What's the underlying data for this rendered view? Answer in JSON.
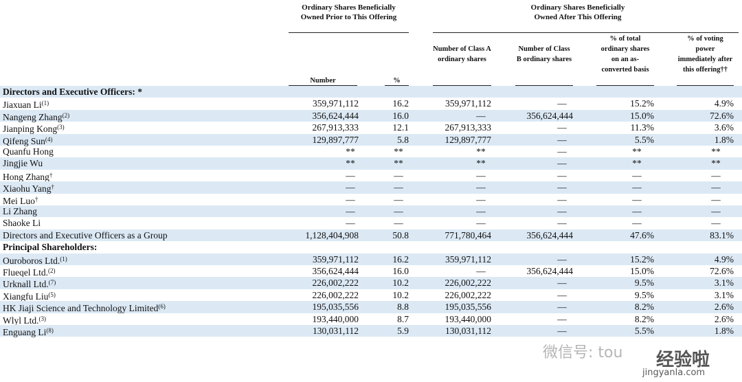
{
  "table": {
    "group_headers": [
      "Ordinary Shares Beneficially Owned Prior to This Offering",
      "Ordinary Shares Beneficially Owned After This Offering"
    ],
    "columns": [
      "Number",
      "%",
      "Number of Class A ordinary shares",
      "Number of Class B ordinary shares",
      "% of total ordinary shares on an as-converted basis",
      "% of voting power immediately after this offering††"
    ],
    "rows": [
      {
        "label": "Directors and Executive Officers: *"
      },
      {
        "label": "Jiaxuan Li",
        "note": "(1)",
        "cells": [
          "359,971,112",
          "16.2",
          "359,971,112",
          "—",
          "15.2%",
          "4.9%"
        ]
      },
      {
        "label": "Nangeng Zhang",
        "note": "(2)",
        "cells": [
          "356,624,444",
          "16.0",
          "—",
          "356,624,444",
          "15.0%",
          "72.6%"
        ]
      },
      {
        "label": "Jianping Kong",
        "note": "(3)",
        "cells": [
          "267,913,333",
          "12.1",
          "267,913,333",
          "—",
          "11.3%",
          "3.6%"
        ]
      },
      {
        "label": "Qifeng Sun",
        "note": "(4)",
        "cells": [
          "129,897,777",
          "5.8",
          "129,897,777",
          "—",
          "5.5%",
          "1.8%"
        ]
      },
      {
        "label": "Quanfu Hong",
        "cells": [
          "**",
          "**",
          "**",
          "—",
          "**",
          "**"
        ]
      },
      {
        "label": "Jingjie Wu",
        "cells": [
          "**",
          "**",
          "**",
          "—",
          "**",
          "**"
        ]
      },
      {
        "label": "Hong Zhang",
        "note": "†",
        "cells": [
          "—",
          "—",
          "—",
          "—",
          "—",
          "—"
        ]
      },
      {
        "label": "Xiaohu Yang",
        "note": "†",
        "cells": [
          "—",
          "—",
          "—",
          "—",
          "—",
          "—"
        ]
      },
      {
        "label": "Mei Luo",
        "note": "†",
        "cells": [
          "—",
          "—",
          "—",
          "—",
          "—",
          "—"
        ]
      },
      {
        "label": "Li Zhang",
        "cells": [
          "—",
          "—",
          "—",
          "—",
          "—",
          "—"
        ]
      },
      {
        "label": "Shaoke Li",
        "cells": [
          "—",
          "—",
          "—",
          "—",
          "—",
          "—"
        ]
      },
      {
        "label": "Directors and Executive Officers as a Group",
        "cells": [
          "1,128,404,908",
          "50.8",
          "771,780,464",
          "356,624,444",
          "47.6%",
          "83.1%"
        ]
      },
      {
        "label": "Principal Shareholders:"
      },
      {
        "label": "Ouroboros Ltd.",
        "note": "(1)",
        "cells": [
          "359,971,112",
          "16.2",
          "359,971,112",
          "—",
          "15.2%",
          "4.9%"
        ]
      },
      {
        "label": "Flueqel Ltd.",
        "note": "(2)",
        "cells": [
          "356,624,444",
          "16.0",
          "—",
          "356,624,444",
          "15.0%",
          "72.6%"
        ]
      },
      {
        "label": "Urknall Ltd.",
        "note": "(7)",
        "cells": [
          "226,002,222",
          "10.2",
          "226,002,222",
          "—",
          "9.5%",
          "3.1%"
        ]
      },
      {
        "label": "Xiangfu Liu",
        "note": "(5)",
        "cells": [
          "226,002,222",
          "10.2",
          "226,002,222",
          "—",
          "9.5%",
          "3.1%"
        ]
      },
      {
        "label": "HK Jiaji Science and Technology Limited",
        "note": "(6)",
        "cells": [
          "195,035,556",
          "8.8",
          "195,035,556",
          "—",
          "8.2%",
          "2.6%"
        ]
      },
      {
        "label": "Wlyl Ltd.",
        "note": "(3)",
        "cells": [
          "193,440,000",
          "8.7",
          "193,440,000",
          "—",
          "8.2%",
          "2.6%"
        ]
      },
      {
        "label": "Enguang Li",
        "note": "(8)",
        "cells": [
          "130,031,112",
          "5.9",
          "130,031,112",
          "—",
          "5.5%",
          "1.8%"
        ]
      }
    ]
  },
  "watermark": [
    "微信号: tou",
    "经验啦",
    "jingyanla.com"
  ]
}
